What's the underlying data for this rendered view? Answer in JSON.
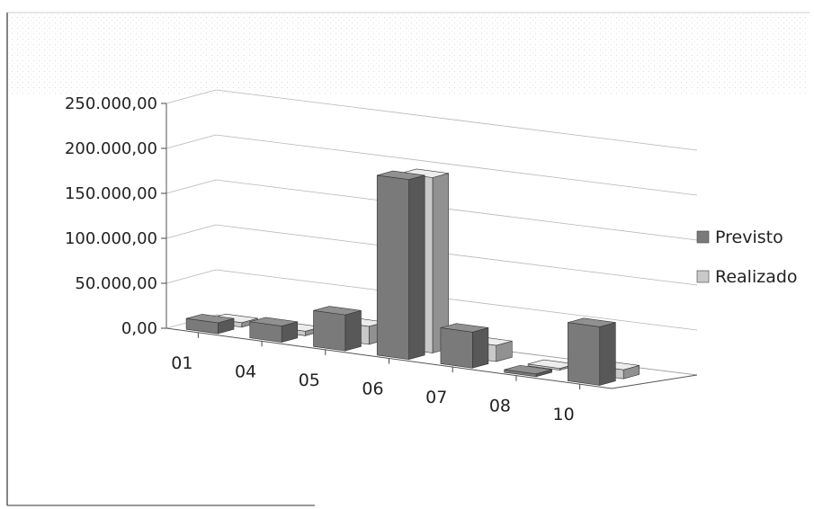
{
  "chart_data": {
    "type": "bar",
    "categories": [
      "01",
      "04",
      "05",
      "06",
      "07",
      "08",
      "10"
    ],
    "series": [
      {
        "name": "Previsto",
        "values": [
          12000,
          18000,
          40000,
          200000,
          40000,
          3000,
          65000
        ]
      },
      {
        "name": "Realizado",
        "values": [
          5000,
          5000,
          20000,
          195000,
          18000,
          2000,
          10000
        ]
      }
    ],
    "y_ticks": [
      "0,00",
      "50.000,00",
      "100.000,00",
      "150.000,00",
      "200.000,00",
      "250.000,00"
    ],
    "ylim": [
      0,
      250000
    ],
    "grid": true,
    "legend_position": "right",
    "colors": {
      "Previsto": "#7a7a7a",
      "Realizado": "#c9c9c9"
    }
  }
}
